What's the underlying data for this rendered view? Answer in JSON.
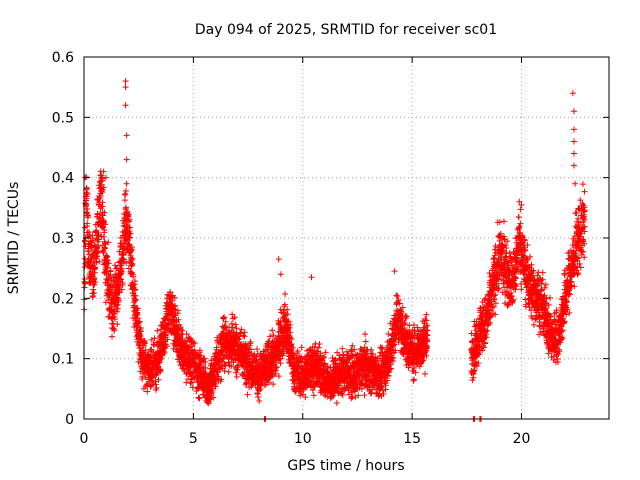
{
  "chart_data": {
    "type": "scatter",
    "title": "Day 094 of 2025, SRMTID for receiver sc01",
    "xlabel": "GPS time / hours",
    "ylabel": "SRMTID / TECUs",
    "xlim": [
      0,
      24
    ],
    "ylim": [
      0,
      0.6
    ],
    "xticks": [
      0,
      5,
      10,
      15,
      20
    ],
    "xtick_labels": [
      "0",
      "5",
      "10",
      "15",
      "20"
    ],
    "yticks": [
      0,
      0.1,
      0.2,
      0.3,
      0.4,
      0.5,
      0.6
    ],
    "ytick_labels": [
      "0",
      "0.1",
      "0.2",
      "0.3",
      "0.4",
      "0.5",
      "0.6"
    ],
    "grid": true,
    "marker": "+",
    "marker_color": "#ff0000",
    "series": [
      {
        "name": "SRMTID",
        "anchors": [
          [
            0.0,
            0.18
          ],
          [
            0.1,
            0.37
          ],
          [
            0.2,
            0.28
          ],
          [
            0.4,
            0.24
          ],
          [
            0.6,
            0.3
          ],
          [
            0.8,
            0.38
          ],
          [
            1.0,
            0.25
          ],
          [
            1.3,
            0.18
          ],
          [
            1.6,
            0.22
          ],
          [
            1.9,
            0.33
          ],
          [
            2.1,
            0.28
          ],
          [
            2.3,
            0.2
          ],
          [
            2.5,
            0.13
          ],
          [
            2.8,
            0.09
          ],
          [
            3.1,
            0.08
          ],
          [
            3.5,
            0.11
          ],
          [
            3.9,
            0.18
          ],
          [
            4.3,
            0.13
          ],
          [
            4.7,
            0.1
          ],
          [
            5.1,
            0.09
          ],
          [
            5.4,
            0.07
          ],
          [
            5.7,
            0.05
          ],
          [
            6.0,
            0.08
          ],
          [
            6.4,
            0.13
          ],
          [
            6.8,
            0.12
          ],
          [
            7.2,
            0.11
          ],
          [
            7.6,
            0.09
          ],
          [
            8.0,
            0.07
          ],
          [
            8.4,
            0.09
          ],
          [
            8.8,
            0.11
          ],
          [
            9.2,
            0.16
          ],
          [
            9.6,
            0.08
          ],
          [
            10.0,
            0.07
          ],
          [
            10.4,
            0.09
          ],
          [
            10.8,
            0.08
          ],
          [
            11.2,
            0.06
          ],
          [
            11.6,
            0.07
          ],
          [
            12.0,
            0.08
          ],
          [
            12.4,
            0.07
          ],
          [
            12.8,
            0.09
          ],
          [
            13.2,
            0.08
          ],
          [
            13.6,
            0.07
          ],
          [
            14.0,
            0.11
          ],
          [
            14.3,
            0.17
          ],
          [
            14.6,
            0.14
          ],
          [
            15.0,
            0.11
          ],
          [
            15.3,
            0.12
          ],
          [
            15.6,
            0.13
          ],
          [
            17.8,
            0.11
          ],
          [
            18.1,
            0.15
          ],
          [
            18.4,
            0.16
          ],
          [
            18.7,
            0.22
          ],
          [
            19.0,
            0.27
          ],
          [
            19.3,
            0.25
          ],
          [
            19.6,
            0.22
          ],
          [
            19.9,
            0.3
          ],
          [
            20.2,
            0.24
          ],
          [
            20.5,
            0.21
          ],
          [
            20.8,
            0.2
          ],
          [
            21.1,
            0.17
          ],
          [
            21.4,
            0.13
          ],
          [
            21.7,
            0.14
          ],
          [
            22.0,
            0.2
          ],
          [
            22.3,
            0.25
          ],
          [
            22.6,
            0.3
          ],
          [
            22.9,
            0.33
          ]
        ],
        "gaps": [
          [
            15.7,
            17.7
          ]
        ],
        "spread": 0.09,
        "points_per_hour": 240,
        "outliers": [
          [
            0.05,
            0.4
          ],
          [
            0.1,
            0.38
          ],
          [
            0.9,
            0.41
          ],
          [
            1.0,
            0.4
          ],
          [
            1.9,
            0.56
          ],
          [
            1.9,
            0.55
          ],
          [
            1.9,
            0.52
          ],
          [
            1.95,
            0.47
          ],
          [
            1.95,
            0.43
          ],
          [
            1.95,
            0.39
          ],
          [
            2.1,
            0.33
          ],
          [
            8.9,
            0.265
          ],
          [
            9.0,
            0.24
          ],
          [
            10.4,
            0.235
          ],
          [
            14.2,
            0.245
          ],
          [
            22.35,
            0.54
          ],
          [
            22.4,
            0.51
          ],
          [
            22.4,
            0.48
          ],
          [
            22.4,
            0.46
          ],
          [
            22.4,
            0.44
          ],
          [
            22.4,
            0.42
          ],
          [
            22.45,
            0.39
          ],
          [
            19.9,
            0.36
          ],
          [
            20.0,
            0.355
          ]
        ],
        "zero_points": [
          8.25,
          17.8,
          18.1
        ]
      }
    ]
  }
}
